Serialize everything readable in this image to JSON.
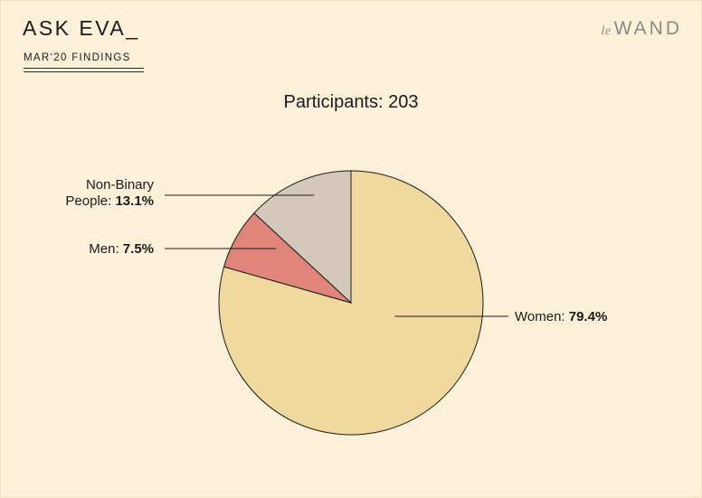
{
  "header": {
    "title": "ASK EVA_",
    "subtitle": "MAR‘20 FINDINGS",
    "logo_prefix": "le",
    "logo_main": "WAND"
  },
  "chart_data": {
    "type": "pie",
    "title": "Participants: 203",
    "slices": [
      {
        "label": "Women:",
        "value": 79.4,
        "value_label": "79.4%",
        "color": "#f0d99e"
      },
      {
        "label": "Men:",
        "value": 7.5,
        "value_label": "7.5%",
        "color": "#e0857c"
      },
      {
        "label": "Non-Binary People:",
        "label_lines": [
          "Non-Binary",
          "People:"
        ],
        "value": 13.1,
        "value_label": "13.1%",
        "color": "#d3c8b9"
      }
    ],
    "start_angle_deg": 0,
    "direction": "clockwise",
    "outline_color": "#1b1b1b"
  }
}
